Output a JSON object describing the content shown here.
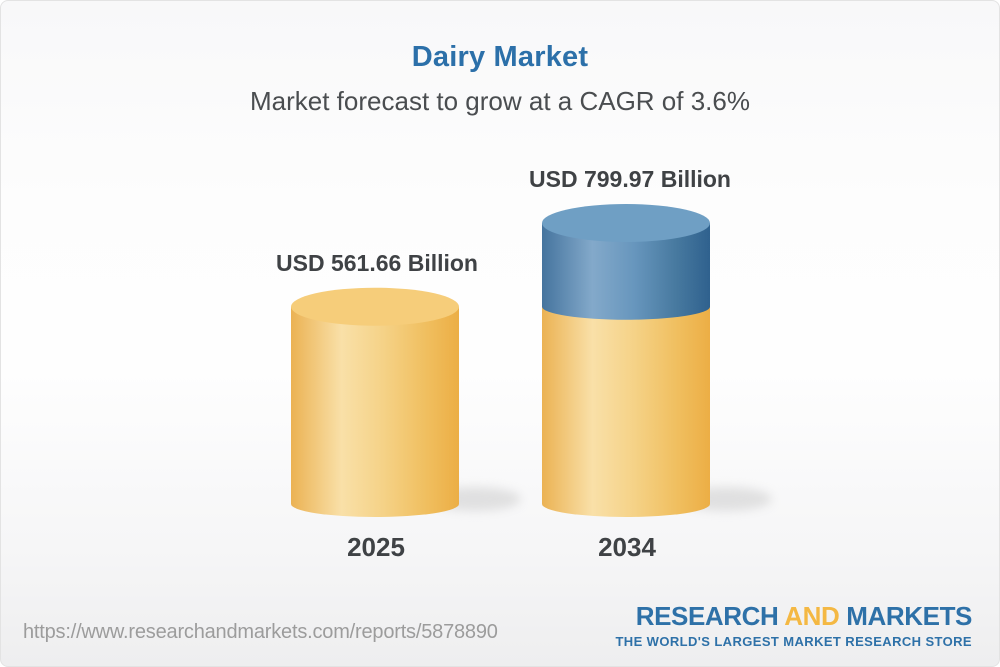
{
  "title": "Dairy Market",
  "subtitle": "Market forecast to grow at a CAGR of 3.6%",
  "chart_data": {
    "type": "bar",
    "style": "3d-cylinder",
    "categories": [
      "2025",
      "2034"
    ],
    "values": [
      561.66,
      799.97
    ],
    "value_labels": [
      "USD 561.66 Billion",
      "USD 799.97 Billion"
    ],
    "unit": "USD Billion",
    "cagr_percent": 3.6,
    "ylim": [
      0,
      799.97
    ],
    "grid": false,
    "legend": "none",
    "stacking_note": "2034 cylinder shows the 2025 base value in gold with the incremental growth segment in blue on top"
  },
  "footer": {
    "url": "https://www.researchandmarkets.com/reports/5878890",
    "logo": {
      "word1": "RESEARCH",
      "word2": "AND",
      "word3": "MARKETS",
      "tagline": "THE WORLD'S LARGEST MARKET RESEARCH STORE"
    }
  },
  "colors": {
    "title_blue": "#2c70a9",
    "text_dark": "#3f4245",
    "text_medium": "#4a4d50",
    "url_gray": "#9c9c9c",
    "logo_blue": "#2e71a8",
    "logo_gold": "#f4b843",
    "card_border": "#e3e3e3",
    "gold_top": "#f6cd7a",
    "blue_top": "#6f9fc4",
    "gold_body_stops": [
      "#ebb253",
      "#f9e0a8",
      "#f5d287",
      "#f0bf60",
      "#ecae45"
    ],
    "blue_body_stops": [
      "#45749e",
      "#83a9ca",
      "#6796bd",
      "#47799f",
      "#2f618e"
    ]
  }
}
